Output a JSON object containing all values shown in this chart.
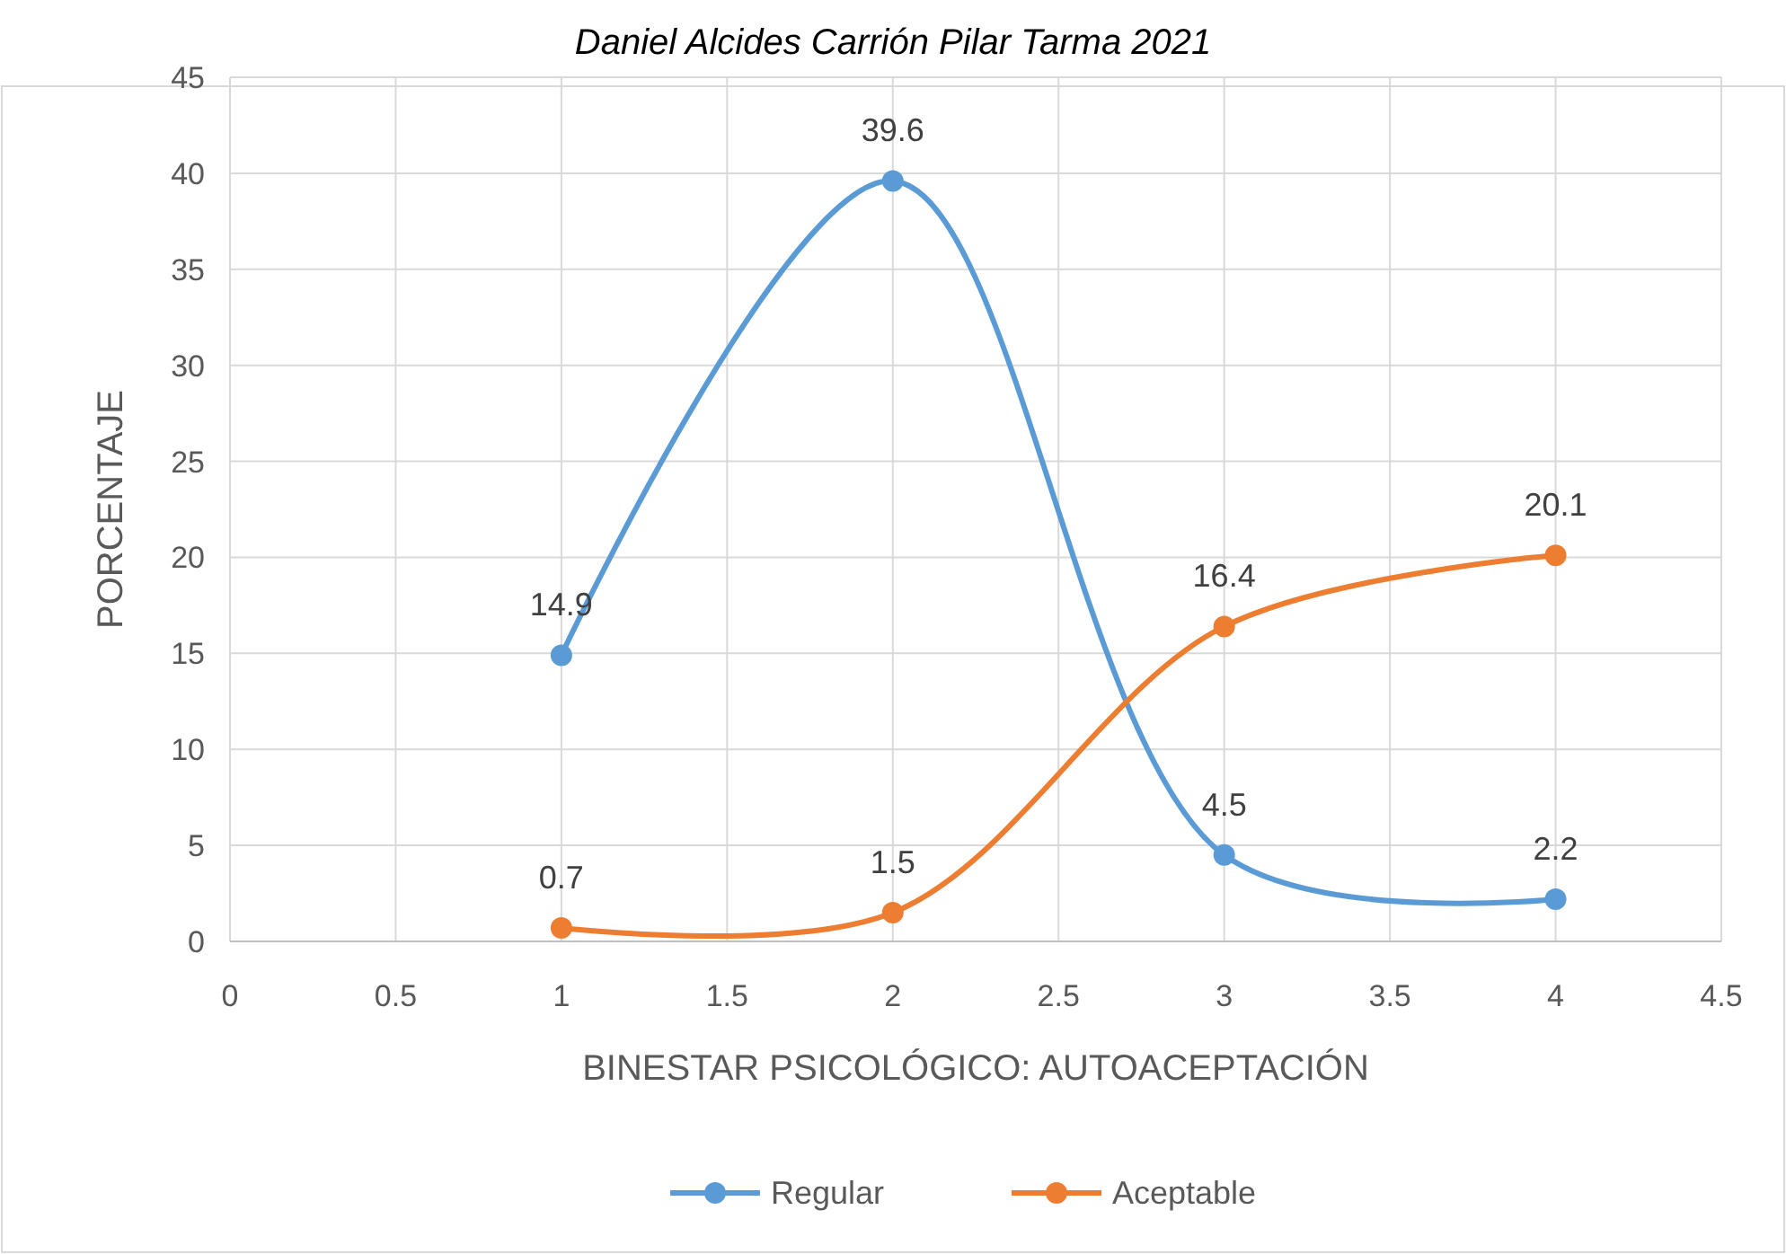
{
  "chart_data": {
    "type": "line",
    "title": "Daniel Alcides Carrión Pilar Tarma 2021",
    "xlabel": "BINESTAR PSICOLÓGICO: AUTOACEPTACIÓN",
    "ylabel": "PORCENTAJE",
    "x": [
      1,
      2,
      3,
      4
    ],
    "series": [
      {
        "name": "Regular",
        "color": "#5b9bd5",
        "values": [
          14.9,
          39.6,
          4.5,
          2.2
        ]
      },
      {
        "name": "Aceptable",
        "color": "#ed7d31",
        "values": [
          0.7,
          1.5,
          16.4,
          20.1
        ]
      }
    ],
    "xlim": [
      0,
      4.5
    ],
    "xticks": [
      0,
      0.5,
      1,
      1.5,
      2,
      2.5,
      3,
      3.5,
      4,
      4.5
    ],
    "ylim": [
      0,
      45
    ],
    "yticks": [
      0,
      5,
      10,
      15,
      20,
      25,
      30,
      35,
      40,
      45
    ],
    "grid": true,
    "legend": "bottom",
    "marker": "circle",
    "line_style": "solid",
    "data_labels": true
  }
}
